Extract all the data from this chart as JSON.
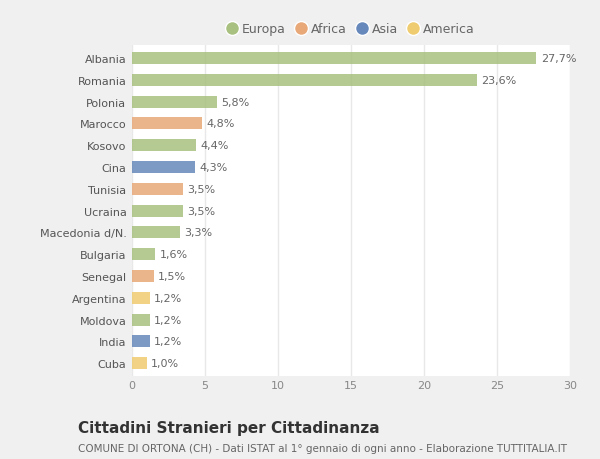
{
  "countries": [
    "Albania",
    "Romania",
    "Polonia",
    "Marocco",
    "Kosovo",
    "Cina",
    "Tunisia",
    "Ucraina",
    "Macedonia d/N.",
    "Bulgaria",
    "Senegal",
    "Argentina",
    "Moldova",
    "India",
    "Cuba"
  ],
  "values": [
    27.7,
    23.6,
    5.8,
    4.8,
    4.4,
    4.3,
    3.5,
    3.5,
    3.3,
    1.6,
    1.5,
    1.2,
    1.2,
    1.2,
    1.0
  ],
  "labels": [
    "27,7%",
    "23,6%",
    "5,8%",
    "4,8%",
    "4,4%",
    "4,3%",
    "3,5%",
    "3,5%",
    "3,3%",
    "1,6%",
    "1,5%",
    "1,2%",
    "1,2%",
    "1,2%",
    "1,0%"
  ],
  "categories": [
    "Europa",
    "Africa",
    "Asia",
    "America"
  ],
  "continent": [
    "Europa",
    "Europa",
    "Europa",
    "Africa",
    "Europa",
    "Asia",
    "Africa",
    "Europa",
    "Europa",
    "Europa",
    "Africa",
    "America",
    "Europa",
    "Asia",
    "America"
  ],
  "colors": {
    "Europa": "#a8c080",
    "Africa": "#e8a878",
    "Asia": "#6688bb",
    "America": "#f0cc70"
  },
  "xlim": [
    0,
    30
  ],
  "xticks": [
    0,
    5,
    10,
    15,
    20,
    25,
    30
  ],
  "title": "Cittadini Stranieri per Cittadinanza",
  "subtitle": "COMUNE DI ORTONA (CH) - Dati ISTAT al 1° gennaio di ogni anno - Elaborazione TUTTITALIA.IT",
  "fig_bg_color": "#f0f0f0",
  "plot_bg_color": "#ffffff",
  "grid_color": "#e8e8e8",
  "bar_height": 0.55,
  "label_fontsize": 8,
  "tick_fontsize": 8,
  "title_fontsize": 11,
  "subtitle_fontsize": 7.5,
  "legend_fontsize": 9
}
